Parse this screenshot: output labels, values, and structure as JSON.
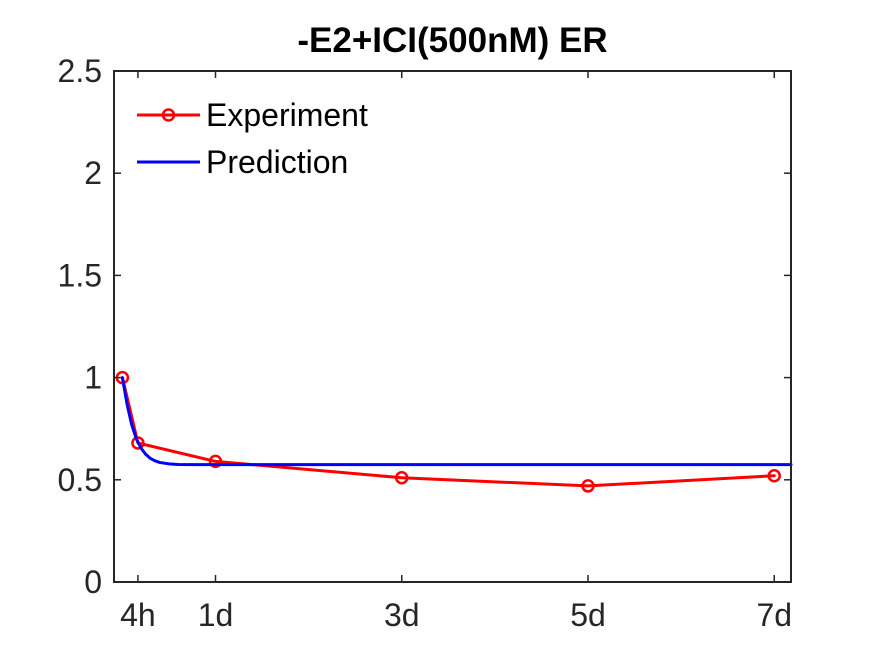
{
  "chart_data": {
    "type": "line",
    "title": "-E2+ICI(500nM) ER",
    "xlabel": "",
    "ylabel": "",
    "xlim": [
      -0.09,
      7.18
    ],
    "ylim": [
      0,
      2.5
    ],
    "grid": false,
    "legend_position": "top-left",
    "x_ticks": [
      {
        "value": 0.167,
        "label": "4h"
      },
      {
        "value": 1,
        "label": "1d"
      },
      {
        "value": 3,
        "label": "3d"
      },
      {
        "value": 5,
        "label": "5d"
      },
      {
        "value": 7,
        "label": "7d"
      }
    ],
    "y_ticks": [
      {
        "value": 0,
        "label": "0"
      },
      {
        "value": 0.5,
        "label": "0.5"
      },
      {
        "value": 1,
        "label": "1"
      },
      {
        "value": 1.5,
        "label": "1.5"
      },
      {
        "value": 2,
        "label": "2"
      },
      {
        "value": 2.5,
        "label": "2.5"
      }
    ],
    "series": [
      {
        "name": "Experiment",
        "color": "#ff0000",
        "marker": "circle",
        "x": [
          0,
          0.167,
          1,
          3,
          5,
          7
        ],
        "y": [
          1.0,
          0.68,
          0.59,
          0.51,
          0.47,
          0.52
        ]
      },
      {
        "name": "Prediction",
        "color": "#0000ff",
        "marker": "none",
        "x": [
          0,
          0.05,
          0.1,
          0.15,
          0.2,
          0.25,
          0.3,
          0.35,
          0.4,
          0.5,
          0.6,
          0.8,
          1,
          1.5,
          2,
          3,
          4,
          5,
          6,
          7,
          7.18
        ],
        "y": [
          1.0,
          0.87,
          0.77,
          0.7,
          0.655,
          0.625,
          0.605,
          0.593,
          0.585,
          0.578,
          0.575,
          0.574,
          0.574,
          0.574,
          0.574,
          0.574,
          0.574,
          0.574,
          0.574,
          0.574,
          0.574
        ]
      }
    ]
  }
}
